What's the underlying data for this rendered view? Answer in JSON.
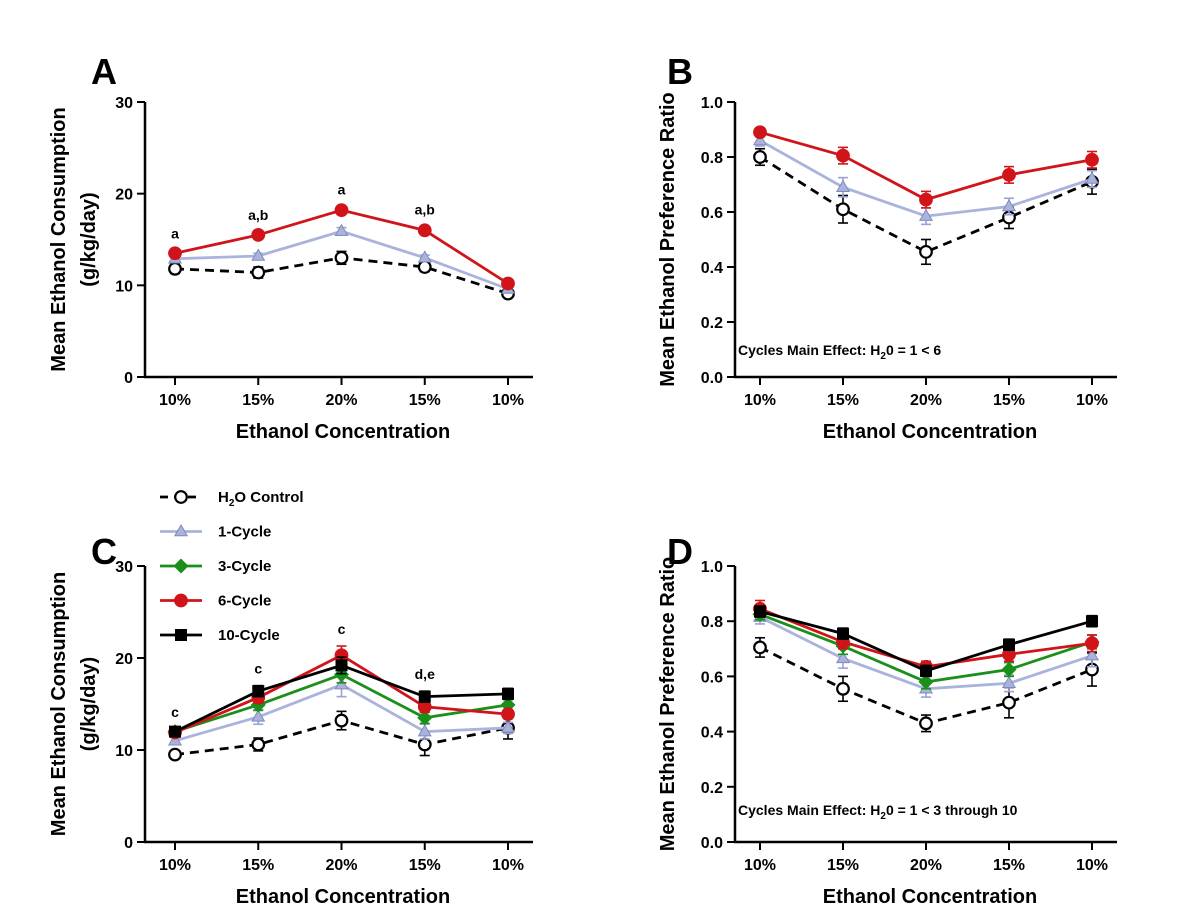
{
  "series_styles": [
    {
      "key": "h2o",
      "label_main": "H",
      "label_sub": "2",
      "label_rest": "O Control",
      "color": "#000000",
      "marker": "circle",
      "fill": "#ffffff",
      "dash": true
    },
    {
      "key": "c1",
      "label_main": "1-Cycle",
      "label_sub": "",
      "label_rest": "",
      "color": "#a9b3dc",
      "marker": "triangle",
      "fill": "#a9b3dc",
      "dash": false
    },
    {
      "key": "c3",
      "label_main": "3-Cycle",
      "label_sub": "",
      "label_rest": "",
      "color": "#1a8f1a",
      "marker": "diamond",
      "fill": "#1a8f1a",
      "dash": false
    },
    {
      "key": "c6",
      "label_main": "6-Cycle",
      "label_sub": "",
      "label_rest": "",
      "color": "#d0141a",
      "marker": "circle",
      "fill": "#d0141a",
      "dash": false
    },
    {
      "key": "c10",
      "label_main": "10-Cycle",
      "label_sub": "",
      "label_rest": "",
      "color": "#000000",
      "marker": "square",
      "fill": "#000000",
      "dash": false
    }
  ],
  "chart_data": [
    {
      "panel": "A",
      "type": "line",
      "categories": [
        "10%",
        "15%",
        "20%",
        "15%",
        "10%"
      ],
      "xlabel": "Ethanol Concentration",
      "ylabel": [
        "Mean Ethanol Consumption",
        "(g/kg/day)"
      ],
      "ylim": [
        0,
        30
      ],
      "yticks": [
        0,
        10,
        20,
        30
      ],
      "ytick_labels": [
        "0",
        "10",
        "20",
        "30"
      ],
      "series": [
        {
          "key": "h2o",
          "values": [
            11.8,
            11.4,
            13.0,
            12.0,
            9.1
          ],
          "err": [
            0.5,
            0.6,
            0.7,
            0.5,
            0.4
          ]
        },
        {
          "key": "c1",
          "values": [
            12.9,
            13.2,
            15.9,
            13.0,
            9.6
          ],
          "err": [
            0.3,
            0.3,
            0.4,
            0.3,
            0.3
          ]
        },
        {
          "key": "c6",
          "values": [
            13.5,
            15.5,
            18.2,
            16.0,
            10.2
          ],
          "err": [
            0.3,
            0.3,
            0.4,
            0.4,
            0.3
          ]
        }
      ],
      "significance": [
        {
          "index": 0,
          "text": "a"
        },
        {
          "index": 1,
          "text": "a,b"
        },
        {
          "index": 2,
          "text": "a"
        },
        {
          "index": 3,
          "text": "a,b"
        }
      ],
      "annotation": null
    },
    {
      "panel": "B",
      "type": "line",
      "categories": [
        "10%",
        "15%",
        "20%",
        "15%",
        "10%"
      ],
      "xlabel": "Ethanol Concentration",
      "ylabel": [
        "Mean Ethanol Preference Ratio"
      ],
      "ylim": [
        0,
        1.0
      ],
      "yticks": [
        0,
        0.2,
        0.4,
        0.6,
        0.8,
        1.0
      ],
      "ytick_labels": [
        "0.0",
        "0.2",
        "0.4",
        "0.6",
        "0.8",
        "1.0"
      ],
      "series": [
        {
          "key": "h2o",
          "values": [
            0.8,
            0.61,
            0.455,
            0.58,
            0.71
          ],
          "err": [
            0.03,
            0.05,
            0.045,
            0.04,
            0.045
          ]
        },
        {
          "key": "c1",
          "values": [
            0.86,
            0.69,
            0.585,
            0.62,
            0.72
          ],
          "err": [
            0.02,
            0.035,
            0.03,
            0.03,
            0.03
          ]
        },
        {
          "key": "c6",
          "values": [
            0.89,
            0.805,
            0.645,
            0.735,
            0.79
          ],
          "err": [
            0.015,
            0.03,
            0.03,
            0.03,
            0.03
          ]
        }
      ],
      "significance": [],
      "annotation": {
        "pre": "Cycles Main Effect: H",
        "sub": "2",
        "post": "0 = 1 < 6"
      }
    },
    {
      "panel": "C",
      "type": "line",
      "categories": [
        "10%",
        "15%",
        "20%",
        "15%",
        "10%"
      ],
      "xlabel": "Ethanol Concentration",
      "ylabel": [
        "Mean Ethanol Consumption",
        "(g/kg/day)"
      ],
      "ylim": [
        0,
        30
      ],
      "yticks": [
        0,
        10,
        20,
        30
      ],
      "ytick_labels": [
        "0",
        "10",
        "20",
        "30"
      ],
      "series": [
        {
          "key": "h2o",
          "values": [
            9.5,
            10.6,
            13.2,
            10.6,
            12.4
          ],
          "err": [
            0.4,
            0.7,
            1.0,
            1.2,
            1.2
          ]
        },
        {
          "key": "c1",
          "values": [
            11.0,
            13.6,
            17.1,
            12.0,
            12.4
          ],
          "err": [
            0.4,
            0.8,
            1.3,
            0.8,
            0.6
          ]
        },
        {
          "key": "c3",
          "values": [
            12.0,
            14.9,
            18.2,
            13.5,
            14.9
          ],
          "err": [
            0.3,
            0.6,
            0.9,
            0.6,
            0.6
          ]
        },
        {
          "key": "c6",
          "values": [
            11.9,
            15.7,
            20.3,
            14.7,
            13.9
          ],
          "err": [
            0.3,
            0.6,
            1.0,
            0.6,
            0.5
          ]
        },
        {
          "key": "c10",
          "values": [
            12.0,
            16.4,
            19.2,
            15.8,
            16.1
          ],
          "err": [
            0.3,
            0.6,
            0.9,
            0.6,
            0.6
          ]
        }
      ],
      "significance": [
        {
          "index": 0,
          "text": "c"
        },
        {
          "index": 1,
          "text": "c"
        },
        {
          "index": 2,
          "text": "c"
        },
        {
          "index": 3,
          "text": "d,e"
        }
      ],
      "annotation": null
    },
    {
      "panel": "D",
      "type": "line",
      "categories": [
        "10%",
        "15%",
        "20%",
        "15%",
        "10%"
      ],
      "xlabel": "Ethanol Concentration",
      "ylabel": [
        "Mean Ethanol Preference Ratio"
      ],
      "ylim": [
        0,
        1.0
      ],
      "yticks": [
        0,
        0.2,
        0.4,
        0.6,
        0.8,
        1.0
      ],
      "ytick_labels": [
        "0.0",
        "0.2",
        "0.4",
        "0.6",
        "0.8",
        "1.0"
      ],
      "series": [
        {
          "key": "h2o",
          "values": [
            0.705,
            0.555,
            0.43,
            0.505,
            0.625
          ],
          "err": [
            0.035,
            0.045,
            0.03,
            0.055,
            0.06
          ]
        },
        {
          "key": "c1",
          "values": [
            0.815,
            0.665,
            0.555,
            0.575,
            0.675
          ],
          "err": [
            0.025,
            0.035,
            0.03,
            0.03,
            0.04
          ]
        },
        {
          "key": "c3",
          "values": [
            0.825,
            0.71,
            0.58,
            0.625,
            0.725
          ],
          "err": [
            0.02,
            0.03,
            0.025,
            0.025,
            0.025
          ]
        },
        {
          "key": "c6",
          "values": [
            0.845,
            0.725,
            0.635,
            0.68,
            0.72
          ],
          "err": [
            0.03,
            0.025,
            0.02,
            0.025,
            0.03
          ]
        },
        {
          "key": "c10",
          "values": [
            0.835,
            0.755,
            0.62,
            0.715,
            0.8
          ],
          "err": [
            0.02,
            0.02,
            0.02,
            0.02,
            0.02
          ]
        }
      ],
      "significance": [],
      "annotation": {
        "pre": "Cycles Main Effect: H",
        "sub": "2",
        "post": "0 = 1 < 3 through 10"
      }
    }
  ]
}
